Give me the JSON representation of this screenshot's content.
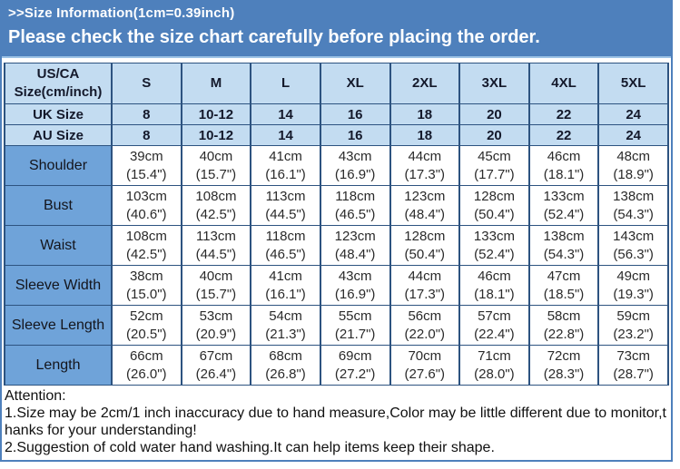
{
  "banner": {
    "line1": ">>Size Information(1cm=0.39inch)",
    "line2": "Please check the size chart carefully before placing the order."
  },
  "colors": {
    "banner_blue": "#4e80bc",
    "light_blue_cell": "#c3dcf1",
    "medium_blue_label_cell": "#6fa3d9",
    "table_border_blue": "#2d5380",
    "frame_border_blue": "#4e80bc",
    "banner_text": "#ffffff"
  },
  "table": {
    "header": [
      "US/CA\nSize(cm/inch)",
      "S",
      "M",
      "L",
      "XL",
      "2XL",
      "3XL",
      "4XL",
      "5XL"
    ],
    "size_rows": [
      {
        "label": "UK Size",
        "values": [
          "8",
          "10-12",
          "14",
          "16",
          "18",
          "20",
          "22",
          "24"
        ]
      },
      {
        "label": "AU Size",
        "values": [
          "8",
          "10-12",
          "14",
          "16",
          "18",
          "20",
          "22",
          "24"
        ]
      }
    ],
    "measure_rows": [
      {
        "label": "Shoulder",
        "values": [
          "39cm\n(15.4\")",
          "40cm\n(15.7\")",
          "41cm\n(16.1\")",
          "43cm\n(16.9\")",
          "44cm\n(17.3\")",
          "45cm\n(17.7\")",
          "46cm\n(18.1\")",
          "48cm\n(18.9\")"
        ]
      },
      {
        "label": "Bust",
        "values": [
          "103cm\n(40.6\")",
          "108cm\n(42.5\")",
          "113cm\n(44.5\")",
          "118cm\n(46.5\")",
          "123cm\n(48.4\")",
          "128cm\n(50.4\")",
          "133cm\n(52.4\")",
          "138cm\n(54.3\")"
        ]
      },
      {
        "label": "Waist",
        "values": [
          "108cm\n(42.5\")",
          "113cm\n(44.5\")",
          "118cm\n(46.5\")",
          "123cm\n(48.4\")",
          "128cm\n(50.4\")",
          "133cm\n(52.4\")",
          "138cm\n(54.3\")",
          "143cm\n(56.3\")"
        ]
      },
      {
        "label": "Sleeve Width",
        "values": [
          "38cm\n(15.0\")",
          "40cm\n(15.7\")",
          "41cm\n(16.1\")",
          "43cm\n(16.9\")",
          "44cm\n(17.3\")",
          "46cm\n(18.1\")",
          "47cm\n(18.5\")",
          "49cm\n(19.3\")"
        ]
      },
      {
        "label": "Sleeve Length",
        "values": [
          "52cm\n(20.5\")",
          "53cm\n(20.9\")",
          "54cm\n(21.3\")",
          "55cm\n(21.7\")",
          "56cm\n(22.0\")",
          "57cm\n(22.4\")",
          "58cm\n(22.8\")",
          "59cm\n(23.2\")"
        ]
      },
      {
        "label": "Length",
        "values": [
          "66cm\n(26.0\")",
          "67cm\n(26.4\")",
          "68cm\n(26.8\")",
          "69cm\n(27.2\")",
          "70cm\n(27.6\")",
          "71cm\n(28.0\")",
          "72cm\n(28.3\")",
          "73cm\n(28.7\")"
        ]
      }
    ]
  },
  "attention": {
    "lines": [
      "Attention:",
      "1.Size may be 2cm/1 inch inaccuracy due to hand measure,Color may be little different due to monitor,t",
      "hanks for your understanding!",
      "2.Suggestion of cold water hand washing.It can help items keep their shape."
    ]
  }
}
